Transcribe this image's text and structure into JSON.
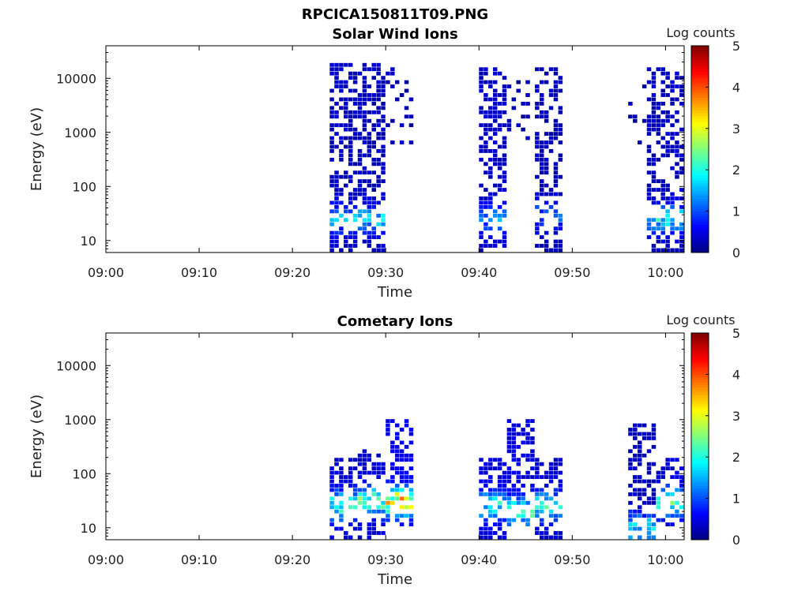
{
  "figure": {
    "title": "RPCICA150811T09.PNG"
  },
  "chart_data": [
    {
      "type": "heatmap",
      "title": "Solar Wind Ions",
      "xlabel": "Time",
      "ylabel": "Energy (eV)",
      "xlim": [
        "09:00",
        "10:02"
      ],
      "ylim": [
        6,
        40000
      ],
      "yscale": "log",
      "x_ticks": [
        "09:00",
        "09:10",
        "09:20",
        "09:30",
        "09:40",
        "09:50",
        "10:00"
      ],
      "y_ticks": [
        10,
        100,
        1000,
        10000
      ],
      "y_tick_labels": [
        "10",
        "100",
        "1000",
        "10000"
      ],
      "colorbar": {
        "label": "Log counts",
        "min": 0,
        "max": 5,
        "ticks": [
          "0",
          "1",
          "2",
          "3",
          "4",
          "5"
        ],
        "colormap": [
          "#00008f",
          "#0000ff",
          "#0080ff",
          "#00ffff",
          "#80ff80",
          "#ffff00",
          "#ff8000",
          "#ff0000",
          "#800000"
        ]
      },
      "data_blocks": [
        {
          "start": "09:24",
          "end": "09:30",
          "emin": 6,
          "emax": 20000,
          "background_log_counts": 0.2,
          "peak_energy": 25,
          "peak_log_counts": 1.6
        },
        {
          "start": "09:30",
          "end": "09:33",
          "emin": 600,
          "emax": 20000,
          "background_log_counts": 0.1,
          "sparse": true
        },
        {
          "start": "09:40",
          "end": "09:43",
          "emin": 6,
          "emax": 15000,
          "background_log_counts": 0.2,
          "peak_energy": 25,
          "peak_log_counts": 1.2
        },
        {
          "start": "09:43",
          "end": "09:46",
          "emin": 600,
          "emax": 10000,
          "background_log_counts": 0.1,
          "sparse": true
        },
        {
          "start": "09:46",
          "end": "09:49",
          "emin": 6,
          "emax": 15000,
          "background_log_counts": 0.2,
          "peak_energy": 30,
          "peak_log_counts": 1.0
        },
        {
          "start": "09:56",
          "end": "09:58",
          "emin": 600,
          "emax": 10000,
          "background_log_counts": 0.1,
          "sparse": true
        },
        {
          "start": "09:58",
          "end": "10:02",
          "emin": 6,
          "emax": 15000,
          "background_log_counts": 0.2,
          "peak_energy": 25,
          "peak_log_counts": 1.8
        }
      ]
    },
    {
      "type": "heatmap",
      "title": "Cometary Ions",
      "xlabel": "Time",
      "ylabel": "Energy (eV)",
      "xlim": [
        "09:00",
        "10:02"
      ],
      "ylim": [
        6,
        40000
      ],
      "yscale": "log",
      "x_ticks": [
        "09:00",
        "09:10",
        "09:20",
        "09:30",
        "09:40",
        "09:50",
        "10:00"
      ],
      "y_ticks": [
        10,
        100,
        1000,
        10000
      ],
      "y_tick_labels": [
        "10",
        "100",
        "1000",
        "10000"
      ],
      "colorbar": {
        "label": "Log counts",
        "min": 0,
        "max": 5,
        "ticks": [
          "0",
          "1",
          "2",
          "3",
          "4",
          "5"
        ],
        "colormap": [
          "#00008f",
          "#0000ff",
          "#0080ff",
          "#00ffff",
          "#80ff80",
          "#ffff00",
          "#ff8000",
          "#ff0000",
          "#800000"
        ]
      },
      "data_blocks": [
        {
          "start": "09:24",
          "end": "09:27",
          "emin": 6,
          "emax": 200,
          "background_log_counts": 0.3,
          "peak_energy": 25,
          "peak_log_counts": 2.2
        },
        {
          "start": "09:27",
          "end": "09:30",
          "emin": 6,
          "emax": 300,
          "background_log_counts": 0.3,
          "peak_energy": 30,
          "peak_log_counts": 2.6
        },
        {
          "start": "09:30",
          "end": "09:33",
          "emin": 10,
          "emax": 1000,
          "background_log_counts": 0.4,
          "peak_energy": 30,
          "peak_log_counts": 3.6
        },
        {
          "start": "09:40",
          "end": "09:43",
          "emin": 6,
          "emax": 200,
          "background_log_counts": 0.3,
          "peak_energy": 25,
          "peak_log_counts": 2.0
        },
        {
          "start": "09:43",
          "end": "09:46",
          "emin": 10,
          "emax": 1000,
          "background_log_counts": 0.3,
          "peak_energy": 20,
          "peak_log_counts": 2.2
        },
        {
          "start": "09:46",
          "end": "09:49",
          "emin": 6,
          "emax": 200,
          "background_log_counts": 0.3,
          "peak_energy": 25,
          "peak_log_counts": 2.2
        },
        {
          "start": "09:56",
          "end": "09:59",
          "emin": 6,
          "emax": 900,
          "background_log_counts": 0.2,
          "peak_energy": 10,
          "peak_log_counts": 2.0
        },
        {
          "start": "09:59",
          "end": "10:02",
          "emin": 10,
          "emax": 200,
          "background_log_counts": 0.3,
          "peak_energy": 30,
          "peak_log_counts": 2.6
        }
      ]
    }
  ]
}
